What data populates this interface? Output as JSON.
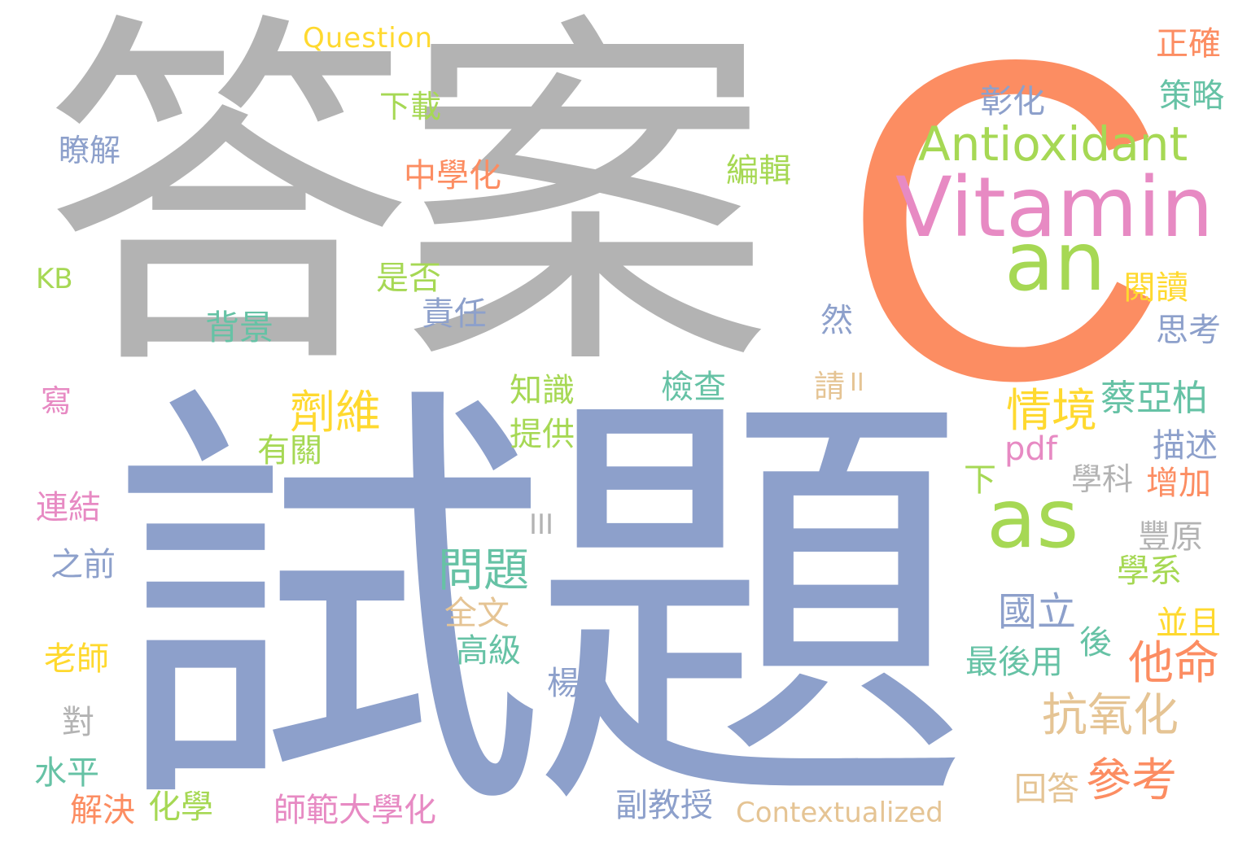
{
  "colors": {
    "gray": "#b3b3b3",
    "blue": "#8da0cb",
    "orange": "#fc8d62",
    "pink": "#e78ac3",
    "green": "#a6d854",
    "yellow": "#ffd92f",
    "tan": "#e5c494",
    "teal": "#66c2a5"
  },
  "words": [
    {
      "text": "答案",
      "color": "gray"
    },
    {
      "text": "試題",
      "color": "blue"
    },
    {
      "text": "C",
      "color": "orange"
    },
    {
      "text": "Vitamin",
      "color": "pink"
    },
    {
      "text": "Antioxidant",
      "color": "green"
    },
    {
      "text": "an",
      "color": "green"
    },
    {
      "text": "as",
      "color": "green"
    },
    {
      "text": "Question",
      "color": "yellow"
    },
    {
      "text": "正確",
      "color": "orange"
    },
    {
      "text": "策略",
      "color": "teal"
    },
    {
      "text": "彰化",
      "color": "blue"
    },
    {
      "text": "下載",
      "color": "green"
    },
    {
      "text": "瞭解",
      "color": "blue"
    },
    {
      "text": "中學化",
      "color": "orange"
    },
    {
      "text": "編輯",
      "color": "green"
    },
    {
      "text": "KB",
      "color": "green"
    },
    {
      "text": "是否",
      "color": "green"
    },
    {
      "text": "背景",
      "color": "teal"
    },
    {
      "text": "責任",
      "color": "blue"
    },
    {
      "text": "然",
      "color": "blue"
    },
    {
      "text": "閱讀",
      "color": "yellow"
    },
    {
      "text": "思考",
      "color": "blue"
    },
    {
      "text": "寫",
      "color": "pink"
    },
    {
      "text": "劑維",
      "color": "yellow"
    },
    {
      "text": "知識",
      "color": "green"
    },
    {
      "text": "檢查",
      "color": "teal"
    },
    {
      "text": "請",
      "color": "tan"
    },
    {
      "text": "II",
      "color": "tan"
    },
    {
      "text": "情境",
      "color": "yellow"
    },
    {
      "text": "蔡亞柏",
      "color": "teal"
    },
    {
      "text": "有關",
      "color": "green"
    },
    {
      "text": "提供",
      "color": "green"
    },
    {
      "text": "pdf",
      "color": "pink"
    },
    {
      "text": "描述",
      "color": "blue"
    },
    {
      "text": "連結",
      "color": "pink"
    },
    {
      "text": "下",
      "color": "green"
    },
    {
      "text": "學科",
      "color": "gray"
    },
    {
      "text": "增加",
      "color": "orange"
    },
    {
      "text": "III",
      "color": "gray"
    },
    {
      "text": "豐原",
      "color": "gray"
    },
    {
      "text": "之前",
      "color": "blue"
    },
    {
      "text": "問題",
      "color": "teal"
    },
    {
      "text": "學系",
      "color": "green"
    },
    {
      "text": "國立",
      "color": "blue"
    },
    {
      "text": "全文",
      "color": "tan"
    },
    {
      "text": "並且",
      "color": "yellow"
    },
    {
      "text": "後",
      "color": "teal"
    },
    {
      "text": "老師",
      "color": "yellow"
    },
    {
      "text": "高級",
      "color": "teal"
    },
    {
      "text": "最後用",
      "color": "teal"
    },
    {
      "text": "他命",
      "color": "orange"
    },
    {
      "text": "楊",
      "color": "blue"
    },
    {
      "text": "對",
      "color": "gray"
    },
    {
      "text": "抗氧化",
      "color": "tan"
    },
    {
      "text": "水平",
      "color": "teal"
    },
    {
      "text": "回答",
      "color": "tan"
    },
    {
      "text": "參考",
      "color": "orange"
    },
    {
      "text": "解決",
      "color": "orange"
    },
    {
      "text": "化學",
      "color": "green"
    },
    {
      "text": "師範大學化",
      "color": "pink"
    },
    {
      "text": "副教授",
      "color": "blue"
    },
    {
      "text": "Contextualized",
      "color": "tan"
    }
  ]
}
